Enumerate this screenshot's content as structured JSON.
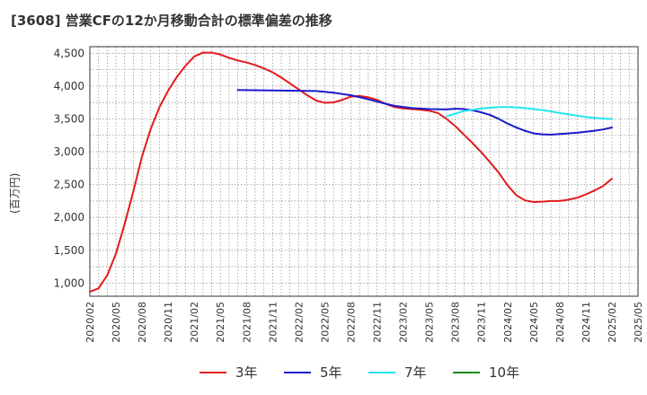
{
  "title": "[3608]  営業CFの12か月移動合計の標準偏差の推移",
  "y_unit": "(百万円)",
  "colors": {
    "3y": "#e31a1c",
    "5y": "#1a1acc",
    "7y": "#22e5ee",
    "10y": "#1b8a1b",
    "grid": "#999999",
    "axis": "#333333"
  },
  "chart_data": {
    "type": "line",
    "title": "[3608]  営業CFの12か月移動合計の標準偏差の推移",
    "xlabel": "",
    "ylabel": "(百万円)",
    "ylim": [
      800,
      4600
    ],
    "yticks": [
      1000,
      1500,
      2000,
      2500,
      3000,
      3500,
      4000,
      4500
    ],
    "ytick_labels": [
      "1,000",
      "1,500",
      "2,000",
      "2,500",
      "3,000",
      "3,500",
      "4,000",
      "4,500"
    ],
    "xticks": [
      "2020/02",
      "2020/05",
      "2020/08",
      "2020/11",
      "2021/02",
      "2021/05",
      "2021/08",
      "2021/11",
      "2022/02",
      "2022/05",
      "2022/08",
      "2022/11",
      "2023/02",
      "2023/05",
      "2023/08",
      "2023/11",
      "2024/02",
      "2024/05",
      "2024/08",
      "2024/11",
      "2025/02",
      "2025/05"
    ],
    "grid": true,
    "legend_position": "bottom",
    "series": [
      {
        "name": "3年",
        "color": "#e31a1c",
        "points": [
          [
            "2020/02",
            870
          ],
          [
            "2020/03",
            920
          ],
          [
            "2020/04",
            1120
          ],
          [
            "2020/05",
            1450
          ],
          [
            "2020/06",
            1900
          ],
          [
            "2020/07",
            2400
          ],
          [
            "2020/08",
            2930
          ],
          [
            "2020/09",
            3350
          ],
          [
            "2020/10",
            3680
          ],
          [
            "2020/11",
            3930
          ],
          [
            "2020/12",
            4140
          ],
          [
            "2021/01",
            4310
          ],
          [
            "2021/02",
            4450
          ],
          [
            "2021/03",
            4510
          ],
          [
            "2021/04",
            4510
          ],
          [
            "2021/05",
            4480
          ],
          [
            "2021/06",
            4430
          ],
          [
            "2021/07",
            4390
          ],
          [
            "2021/08",
            4360
          ],
          [
            "2021/09",
            4320
          ],
          [
            "2021/10",
            4270
          ],
          [
            "2021/11",
            4210
          ],
          [
            "2021/12",
            4130
          ],
          [
            "2022/01",
            4040
          ],
          [
            "2022/02",
            3950
          ],
          [
            "2022/03",
            3860
          ],
          [
            "2022/04",
            3780
          ],
          [
            "2022/05",
            3745
          ],
          [
            "2022/06",
            3750
          ],
          [
            "2022/07",
            3790
          ],
          [
            "2022/08",
            3840
          ],
          [
            "2022/09",
            3850
          ],
          [
            "2022/10",
            3830
          ],
          [
            "2022/11",
            3790
          ],
          [
            "2022/12",
            3730
          ],
          [
            "2023/01",
            3680
          ],
          [
            "2023/02",
            3660
          ],
          [
            "2023/03",
            3650
          ],
          [
            "2023/04",
            3640
          ],
          [
            "2023/05",
            3625
          ],
          [
            "2023/06",
            3590
          ],
          [
            "2023/07",
            3500
          ],
          [
            "2023/08",
            3390
          ],
          [
            "2023/09",
            3260
          ],
          [
            "2023/10",
            3130
          ],
          [
            "2023/11",
            2990
          ],
          [
            "2023/12",
            2840
          ],
          [
            "2024/01",
            2680
          ],
          [
            "2024/02",
            2490
          ],
          [
            "2024/03",
            2340
          ],
          [
            "2024/04",
            2260
          ],
          [
            "2024/05",
            2235
          ],
          [
            "2024/06",
            2240
          ],
          [
            "2024/07",
            2250
          ],
          [
            "2024/08",
            2250
          ],
          [
            "2024/09",
            2270
          ],
          [
            "2024/10",
            2300
          ],
          [
            "2024/11",
            2350
          ],
          [
            "2024/12",
            2410
          ],
          [
            "2025/01",
            2480
          ],
          [
            "2025/02",
            2590
          ]
        ]
      },
      {
        "name": "5年",
        "color": "#1a1acc",
        "points": [
          [
            "2021/07",
            3940
          ],
          [
            "2021/10",
            3935
          ],
          [
            "2022/01",
            3930
          ],
          [
            "2022/04",
            3925
          ],
          [
            "2022/06",
            3900
          ],
          [
            "2022/08",
            3860
          ],
          [
            "2022/10",
            3800
          ],
          [
            "2022/12",
            3730
          ],
          [
            "2023/01",
            3700
          ],
          [
            "2023/03",
            3665
          ],
          [
            "2023/05",
            3650
          ],
          [
            "2023/07",
            3645
          ],
          [
            "2023/08",
            3655
          ],
          [
            "2023/09",
            3650
          ],
          [
            "2023/10",
            3630
          ],
          [
            "2023/11",
            3600
          ],
          [
            "2023/12",
            3560
          ],
          [
            "2024/01",
            3500
          ],
          [
            "2024/02",
            3430
          ],
          [
            "2024/03",
            3370
          ],
          [
            "2024/04",
            3320
          ],
          [
            "2024/05",
            3280
          ],
          [
            "2024/06",
            3265
          ],
          [
            "2024/07",
            3260
          ],
          [
            "2024/08",
            3270
          ],
          [
            "2024/09",
            3280
          ],
          [
            "2024/10",
            3290
          ],
          [
            "2024/11",
            3305
          ],
          [
            "2024/12",
            3320
          ],
          [
            "2025/01",
            3340
          ],
          [
            "2025/02",
            3370
          ]
        ]
      },
      {
        "name": "7年",
        "color": "#22e5ee",
        "points": [
          [
            "2023/07",
            3540
          ],
          [
            "2023/08",
            3580
          ],
          [
            "2023/09",
            3620
          ],
          [
            "2023/10",
            3640
          ],
          [
            "2023/11",
            3660
          ],
          [
            "2023/12",
            3670
          ],
          [
            "2024/01",
            3680
          ],
          [
            "2024/02",
            3680
          ],
          [
            "2024/03",
            3675
          ],
          [
            "2024/04",
            3665
          ],
          [
            "2024/05",
            3650
          ],
          [
            "2024/06",
            3635
          ],
          [
            "2024/07",
            3615
          ],
          [
            "2024/08",
            3590
          ],
          [
            "2024/09",
            3570
          ],
          [
            "2024/10",
            3550
          ],
          [
            "2024/11",
            3530
          ],
          [
            "2024/12",
            3515
          ],
          [
            "2025/01",
            3505
          ],
          [
            "2025/02",
            3500
          ]
        ]
      },
      {
        "name": "10年",
        "color": "#1b8a1b",
        "points": []
      }
    ]
  },
  "legend": [
    {
      "label": "3年",
      "color": "#e31a1c"
    },
    {
      "label": "5年",
      "color": "#1a1acc"
    },
    {
      "label": "7年",
      "color": "#22e5ee"
    },
    {
      "label": "10年",
      "color": "#1b8a1b"
    }
  ]
}
